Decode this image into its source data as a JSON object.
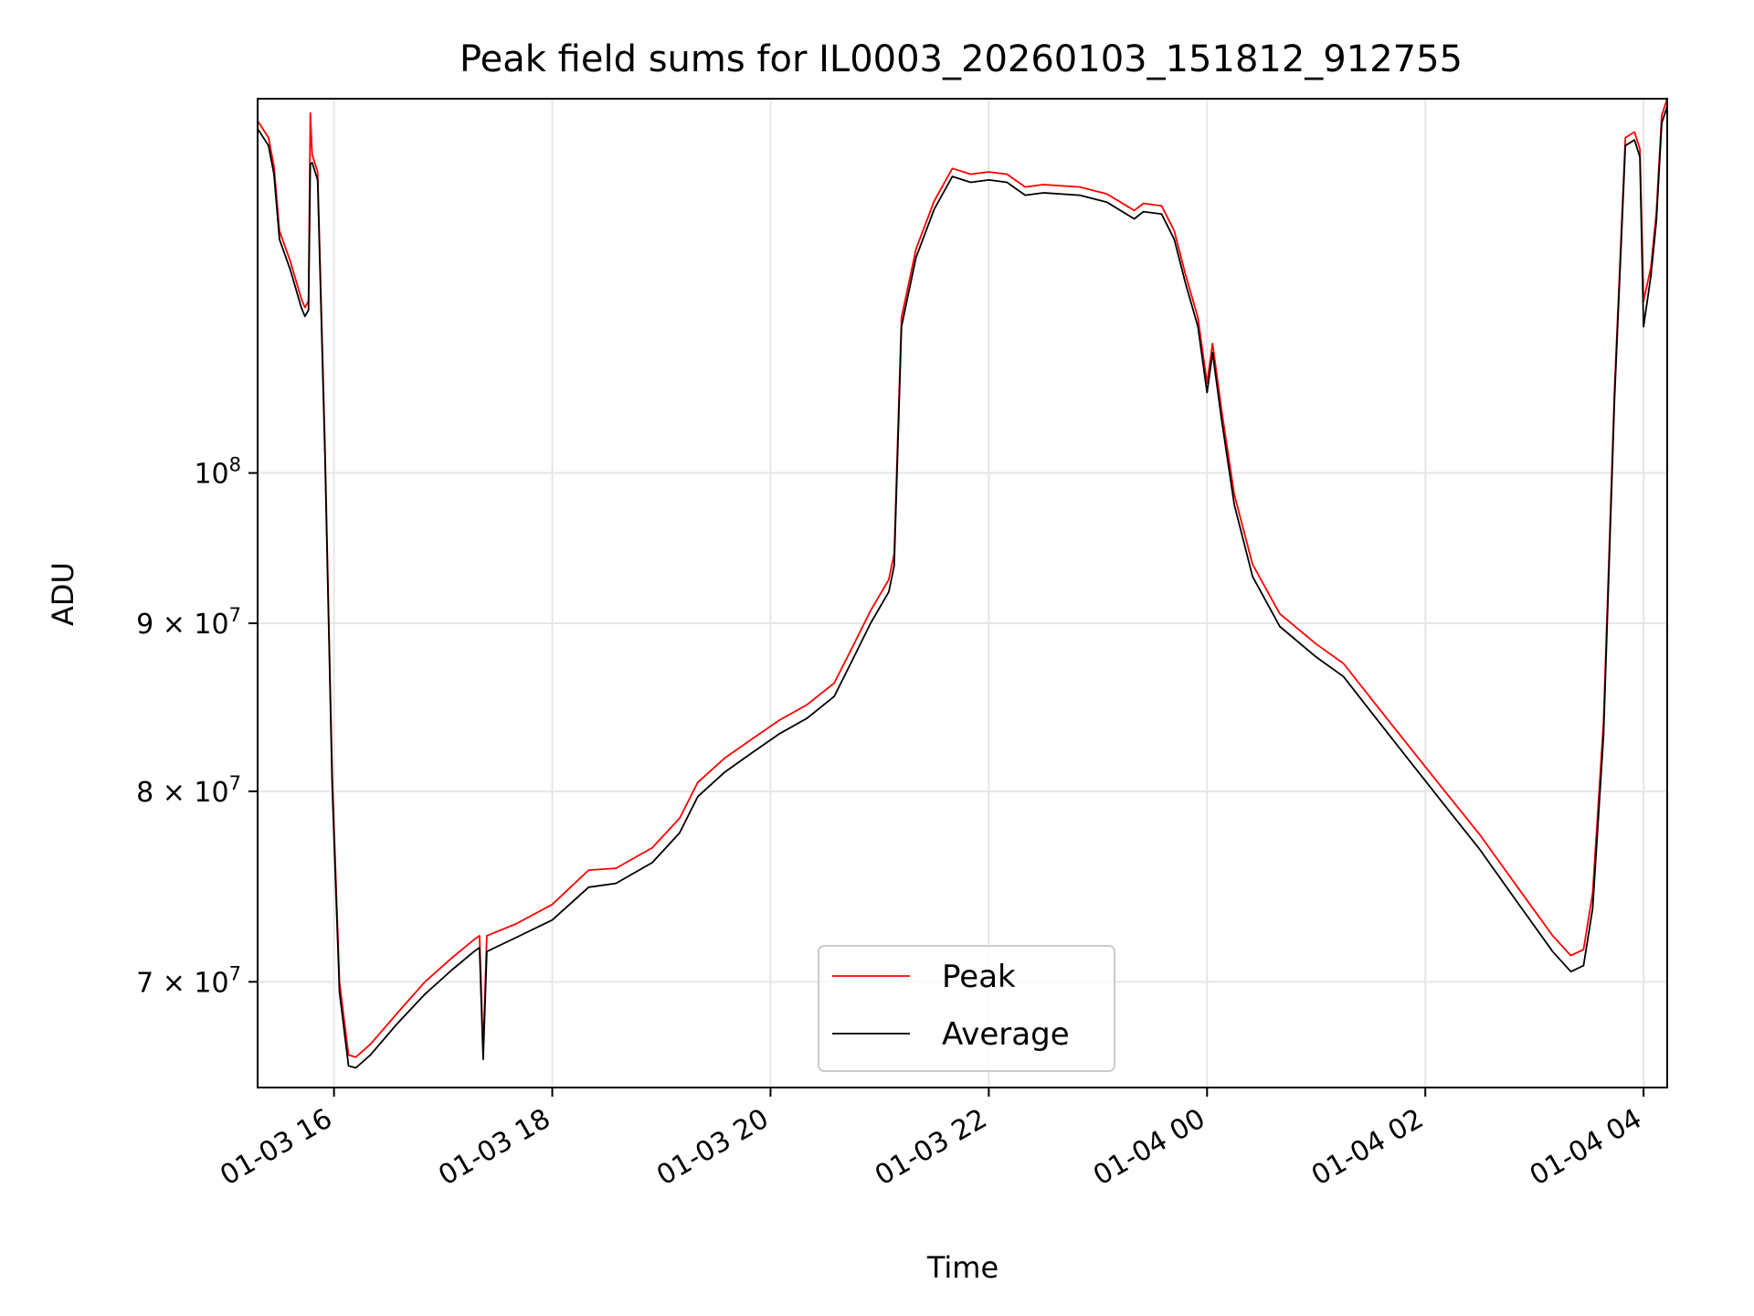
{
  "chart_data": {
    "type": "line",
    "title": "Peak field sums for IL0003_20260103_151812_912755",
    "xlabel": "Time",
    "ylabel": "ADU",
    "y_scale": "log",
    "xlim": [
      "2026-01-03 15:18",
      "2026-01-04 04:13"
    ],
    "ylim": [
      65000000,
      130000000
    ],
    "grid": true,
    "legend": "lower-center",
    "x_ticks": [
      {
        "t": "2026-01-03 16:00",
        "label": "01-03 16"
      },
      {
        "t": "2026-01-03 18:00",
        "label": "01-03 18"
      },
      {
        "t": "2026-01-03 20:00",
        "label": "01-03 20"
      },
      {
        "t": "2026-01-03 22:00",
        "label": "01-03 22"
      },
      {
        "t": "2026-01-04 00:00",
        "label": "01-04 00"
      },
      {
        "t": "2026-01-04 02:00",
        "label": "01-04 02"
      },
      {
        "t": "2026-01-04 04:00",
        "label": "01-04 04"
      }
    ],
    "y_ticks": [
      {
        "v": 100000000,
        "base": "10",
        "exp": "8"
      },
      {
        "v": 90000000,
        "base": "9 × 10",
        "exp": "7"
      },
      {
        "v": 80000000,
        "base": "8 × 10",
        "exp": "7"
      },
      {
        "v": 70000000,
        "base": "7 × 10",
        "exp": "7"
      }
    ],
    "series": [
      {
        "name": "Peak",
        "color": "#ff0000",
        "points": [
          [
            "2026-01-03 15:18",
            128000000
          ],
          [
            "2026-01-03 15:24",
            126500000
          ],
          [
            "2026-01-03 15:27",
            124000000
          ],
          [
            "2026-01-03 15:30",
            118500000
          ],
          [
            "2026-01-03 15:36",
            116000000
          ],
          [
            "2026-01-03 15:42",
            113000000
          ],
          [
            "2026-01-03 15:44",
            112300000
          ],
          [
            "2026-01-03 15:46",
            112800000
          ],
          [
            "2026-01-03 15:47",
            128700000
          ],
          [
            "2026-01-03 15:48",
            125000000
          ],
          [
            "2026-01-03 15:51",
            123500000
          ],
          [
            "2026-01-03 15:55",
            102000000
          ],
          [
            "2026-01-03 15:59",
            81000000
          ],
          [
            "2026-01-03 16:03",
            70000000
          ],
          [
            "2026-01-03 16:08",
            66500000
          ],
          [
            "2026-01-03 16:12",
            66400000
          ],
          [
            "2026-01-03 16:20",
            67000000
          ],
          [
            "2026-01-03 16:35",
            68500000
          ],
          [
            "2026-01-03 16:50",
            70000000
          ],
          [
            "2026-01-03 17:05",
            71200000
          ],
          [
            "2026-01-03 17:17",
            72100000
          ],
          [
            "2026-01-03 17:20",
            72300000
          ],
          [
            "2026-01-03 17:22",
            66700000
          ],
          [
            "2026-01-03 17:24",
            72300000
          ],
          [
            "2026-01-03 17:40",
            72900000
          ],
          [
            "2026-01-03 18:00",
            73900000
          ],
          [
            "2026-01-03 18:20",
            75700000
          ],
          [
            "2026-01-03 18:35",
            75800000
          ],
          [
            "2026-01-03 18:55",
            76900000
          ],
          [
            "2026-01-03 19:10",
            78500000
          ],
          [
            "2026-01-03 19:20",
            80500000
          ],
          [
            "2026-01-03 19:35",
            81900000
          ],
          [
            "2026-01-03 19:50",
            83000000
          ],
          [
            "2026-01-03 20:05",
            84100000
          ],
          [
            "2026-01-03 20:20",
            85000000
          ],
          [
            "2026-01-03 20:35",
            86300000
          ],
          [
            "2026-01-03 20:45",
            88500000
          ],
          [
            "2026-01-03 20:55",
            90800000
          ],
          [
            "2026-01-03 21:05",
            92800000
          ],
          [
            "2026-01-03 21:08",
            94500000
          ],
          [
            "2026-01-03 21:12",
            111500000
          ],
          [
            "2026-01-03 21:20",
            117000000
          ],
          [
            "2026-01-03 21:30",
            121000000
          ],
          [
            "2026-01-03 21:40",
            123800000
          ],
          [
            "2026-01-03 21:50",
            123300000
          ],
          [
            "2026-01-03 22:00",
            123500000
          ],
          [
            "2026-01-03 22:10",
            123300000
          ],
          [
            "2026-01-03 22:20",
            122200000
          ],
          [
            "2026-01-03 22:30",
            122400000
          ],
          [
            "2026-01-03 22:50",
            122200000
          ],
          [
            "2026-01-03 23:05",
            121600000
          ],
          [
            "2026-01-03 23:20",
            120200000
          ],
          [
            "2026-01-03 23:25",
            120800000
          ],
          [
            "2026-01-03 23:35",
            120600000
          ],
          [
            "2026-01-03 23:42",
            118500000
          ],
          [
            "2026-01-03 23:48",
            115000000
          ],
          [
            "2026-01-03 23:55",
            111500000
          ],
          [
            "2026-01-04 00:00",
            106500000
          ],
          [
            "2026-01-04 00:03",
            109500000
          ],
          [
            "2026-01-04 00:08",
            104500000
          ],
          [
            "2026-01-04 00:15",
            98500000
          ],
          [
            "2026-01-04 00:25",
            93800000
          ],
          [
            "2026-01-04 00:40",
            90600000
          ],
          [
            "2026-01-04 01:00",
            88700000
          ],
          [
            "2026-01-04 01:15",
            87500000
          ],
          [
            "2026-01-04 01:30",
            85400000
          ],
          [
            "2026-01-04 01:50",
            82700000
          ],
          [
            "2026-01-04 02:10",
            80100000
          ],
          [
            "2026-01-04 02:30",
            77600000
          ],
          [
            "2026-01-04 02:50",
            74900000
          ],
          [
            "2026-01-04 03:10",
            72300000
          ],
          [
            "2026-01-04 03:20",
            71300000
          ],
          [
            "2026-01-04 03:27",
            71600000
          ],
          [
            "2026-01-04 03:32",
            74500000
          ],
          [
            "2026-01-04 03:38",
            84000000
          ],
          [
            "2026-01-04 03:44",
            106000000
          ],
          [
            "2026-01-04 03:50",
            126500000
          ],
          [
            "2026-01-04 03:55",
            127000000
          ],
          [
            "2026-01-04 03:58",
            125500000
          ],
          [
            "2026-01-04 04:00",
            112800000
          ],
          [
            "2026-01-04 04:04",
            115500000
          ],
          [
            "2026-01-04 04:07",
            120000000
          ],
          [
            "2026-01-04 04:10",
            128500000
          ],
          [
            "2026-01-04 04:13",
            130000000
          ]
        ]
      },
      {
        "name": "Average",
        "color": "#000000",
        "points": [
          [
            "2026-01-03 15:18",
            127300000
          ],
          [
            "2026-01-03 15:24",
            125800000
          ],
          [
            "2026-01-03 15:27",
            123300000
          ],
          [
            "2026-01-03 15:30",
            117800000
          ],
          [
            "2026-01-03 15:36",
            115300000
          ],
          [
            "2026-01-03 15:42",
            112300000
          ],
          [
            "2026-01-03 15:44",
            111600000
          ],
          [
            "2026-01-03 15:46",
            112100000
          ],
          [
            "2026-01-03 15:47",
            124200000
          ],
          [
            "2026-01-03 15:48",
            124300000
          ],
          [
            "2026-01-03 15:51",
            122800000
          ],
          [
            "2026-01-03 15:55",
            101300000
          ],
          [
            "2026-01-03 15:59",
            80400000
          ],
          [
            "2026-01-03 16:03",
            69500000
          ],
          [
            "2026-01-03 16:08",
            66000000
          ],
          [
            "2026-01-03 16:12",
            65900000
          ],
          [
            "2026-01-03 16:20",
            66500000
          ],
          [
            "2026-01-03 16:35",
            68000000
          ],
          [
            "2026-01-03 16:50",
            69400000
          ],
          [
            "2026-01-03 17:05",
            70600000
          ],
          [
            "2026-01-03 17:17",
            71500000
          ],
          [
            "2026-01-03 17:20",
            71700000
          ],
          [
            "2026-01-03 17:22",
            66300000
          ],
          [
            "2026-01-03 17:24",
            71500000
          ],
          [
            "2026-01-03 17:40",
            72200000
          ],
          [
            "2026-01-03 18:00",
            73100000
          ],
          [
            "2026-01-03 18:20",
            74800000
          ],
          [
            "2026-01-03 18:35",
            75000000
          ],
          [
            "2026-01-03 18:55",
            76100000
          ],
          [
            "2026-01-03 19:10",
            77700000
          ],
          [
            "2026-01-03 19:20",
            79700000
          ],
          [
            "2026-01-03 19:35",
            81100000
          ],
          [
            "2026-01-03 19:50",
            82200000
          ],
          [
            "2026-01-03 20:05",
            83300000
          ],
          [
            "2026-01-03 20:20",
            84200000
          ],
          [
            "2026-01-03 20:35",
            85500000
          ],
          [
            "2026-01-03 20:45",
            87700000
          ],
          [
            "2026-01-03 20:55",
            90000000
          ],
          [
            "2026-01-03 21:05",
            92000000
          ],
          [
            "2026-01-03 21:08",
            93700000
          ],
          [
            "2026-01-03 21:12",
            110800000
          ],
          [
            "2026-01-03 21:20",
            116300000
          ],
          [
            "2026-01-03 21:30",
            120300000
          ],
          [
            "2026-01-03 21:40",
            123100000
          ],
          [
            "2026-01-03 21:50",
            122600000
          ],
          [
            "2026-01-03 22:00",
            122800000
          ],
          [
            "2026-01-03 22:10",
            122600000
          ],
          [
            "2026-01-03 22:20",
            121500000
          ],
          [
            "2026-01-03 22:30",
            121700000
          ],
          [
            "2026-01-03 22:50",
            121500000
          ],
          [
            "2026-01-03 23:05",
            120900000
          ],
          [
            "2026-01-03 23:20",
            119500000
          ],
          [
            "2026-01-03 23:25",
            120100000
          ],
          [
            "2026-01-03 23:35",
            119900000
          ],
          [
            "2026-01-03 23:42",
            117800000
          ],
          [
            "2026-01-03 23:48",
            114300000
          ],
          [
            "2026-01-03 23:55",
            110800000
          ],
          [
            "2026-01-04 00:00",
            105800000
          ],
          [
            "2026-01-04 00:03",
            108800000
          ],
          [
            "2026-01-04 00:08",
            103800000
          ],
          [
            "2026-01-04 00:15",
            97800000
          ],
          [
            "2026-01-04 00:25",
            93000000
          ],
          [
            "2026-01-04 00:40",
            89800000
          ],
          [
            "2026-01-04 01:00",
            87900000
          ],
          [
            "2026-01-04 01:15",
            86700000
          ],
          [
            "2026-01-04 01:30",
            84600000
          ],
          [
            "2026-01-04 01:50",
            81900000
          ],
          [
            "2026-01-04 02:10",
            79300000
          ],
          [
            "2026-01-04 02:30",
            76800000
          ],
          [
            "2026-01-04 02:50",
            74100000
          ],
          [
            "2026-01-04 03:10",
            71500000
          ],
          [
            "2026-01-04 03:20",
            70500000
          ],
          [
            "2026-01-04 03:27",
            70800000
          ],
          [
            "2026-01-04 03:32",
            73700000
          ],
          [
            "2026-01-04 03:38",
            83200000
          ],
          [
            "2026-01-04 03:44",
            105300000
          ],
          [
            "2026-01-04 03:50",
            125800000
          ],
          [
            "2026-01-04 03:55",
            126300000
          ],
          [
            "2026-01-04 03:58",
            124800000
          ],
          [
            "2026-01-04 04:00",
            110800000
          ],
          [
            "2026-01-04 04:04",
            114800000
          ],
          [
            "2026-01-04 04:07",
            119300000
          ],
          [
            "2026-01-04 04:10",
            127800000
          ],
          [
            "2026-01-04 04:13",
            129300000
          ]
        ]
      }
    ]
  }
}
